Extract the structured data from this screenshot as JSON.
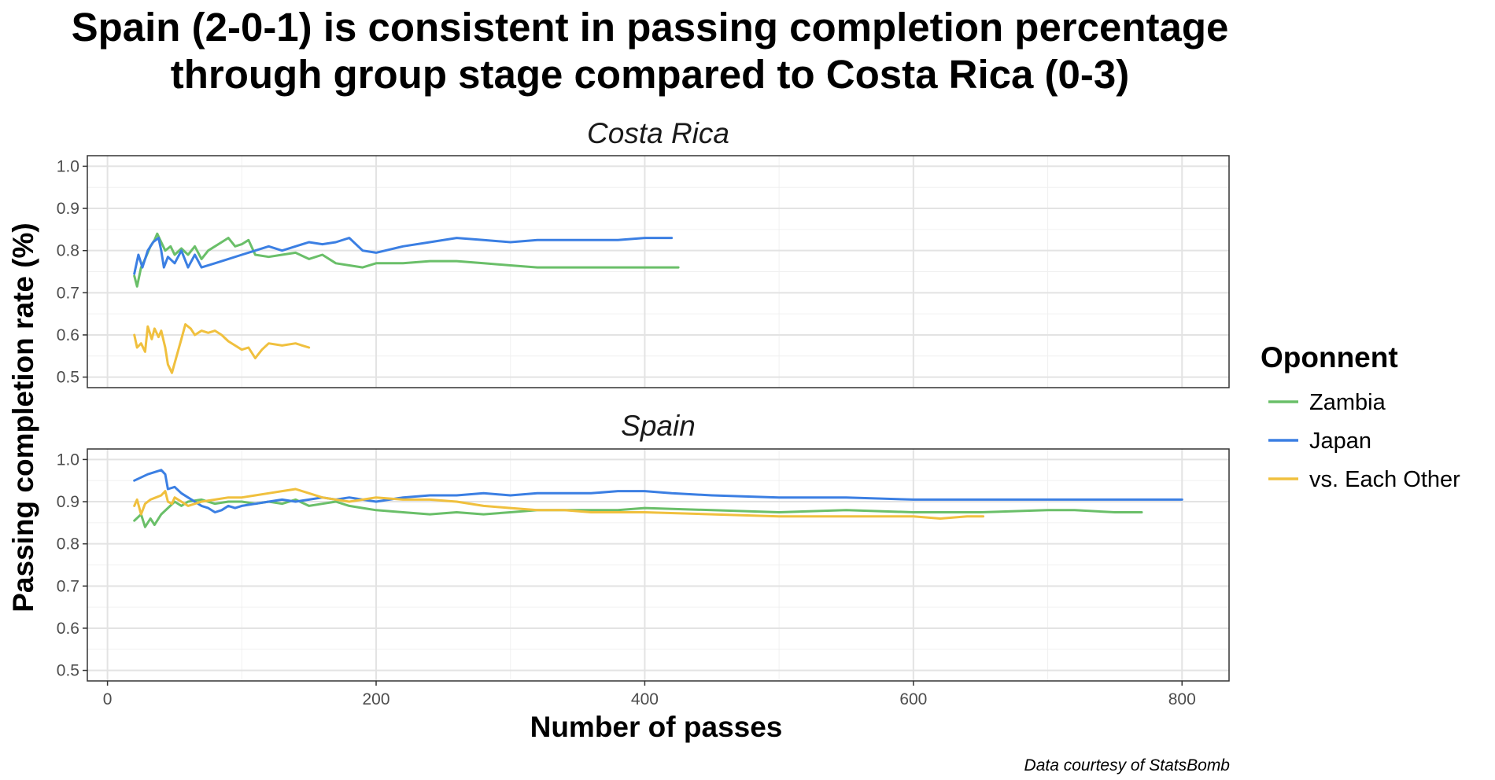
{
  "chart_data": {
    "type": "line",
    "title_lines": [
      "Spain (2-0-1) is consistent in passing completion percentage",
      "through group stage compared to Costa Rica (0-3)"
    ],
    "xlabel": "Number of passes",
    "ylabel": "Passing completion rate (%)",
    "caption": "Data courtesy of StatsBomb",
    "xlim": [
      -15,
      835
    ],
    "ylim": [
      0.475,
      1.025
    ],
    "x_ticks": [
      0,
      200,
      400,
      600,
      800
    ],
    "y_ticks": [
      0.5,
      0.6,
      0.7,
      0.8,
      0.9,
      1.0
    ],
    "y_tick_labels": [
      "0.5",
      "0.6",
      "0.7",
      "0.8",
      "0.9",
      "1.0"
    ],
    "grid": true,
    "legend": {
      "title": "Oponnent",
      "position": "right",
      "entries": [
        {
          "label": "Zambia",
          "color": "#6abf69"
        },
        {
          "label": "Japan",
          "color": "#3b7fe3"
        },
        {
          "label": "vs. Each Other",
          "color": "#f0c03e"
        }
      ]
    },
    "facets": [
      {
        "name": "Costa Rica",
        "series": [
          {
            "name": "Zambia",
            "color": "#6abf69",
            "x": [
              20,
              22,
              25,
              28,
              32,
              35,
              37,
              40,
              43,
              47,
              50,
              55,
              60,
              65,
              70,
              75,
              80,
              85,
              90,
              95,
              100,
              105,
              110,
              120,
              130,
              140,
              150,
              160,
              170,
              180,
              190,
              200,
              220,
              240,
              260,
              280,
              300,
              320,
              340,
              360,
              380,
              400,
              420,
              425
            ],
            "y": [
              0.74,
              0.715,
              0.76,
              0.78,
              0.81,
              0.825,
              0.84,
              0.82,
              0.8,
              0.81,
              0.79,
              0.805,
              0.79,
              0.81,
              0.78,
              0.8,
              0.81,
              0.82,
              0.83,
              0.81,
              0.815,
              0.825,
              0.79,
              0.785,
              0.79,
              0.795,
              0.78,
              0.79,
              0.77,
              0.765,
              0.76,
              0.77,
              0.77,
              0.775,
              0.775,
              0.77,
              0.765,
              0.76,
              0.76,
              0.76,
              0.76,
              0.76,
              0.76,
              0.76
            ]
          },
          {
            "name": "Japan",
            "color": "#3b7fe3",
            "x": [
              20,
              23,
              26,
              30,
              34,
              38,
              40,
              42,
              45,
              50,
              55,
              60,
              65,
              70,
              80,
              90,
              100,
              110,
              120,
              130,
              140,
              150,
              160,
              170,
              180,
              190,
              200,
              220,
              240,
              260,
              280,
              300,
              320,
              340,
              360,
              380,
              400,
              410,
              420
            ],
            "y": [
              0.745,
              0.79,
              0.76,
              0.8,
              0.82,
              0.83,
              0.8,
              0.76,
              0.785,
              0.77,
              0.8,
              0.76,
              0.79,
              0.76,
              0.77,
              0.78,
              0.79,
              0.8,
              0.81,
              0.8,
              0.81,
              0.82,
              0.815,
              0.82,
              0.83,
              0.8,
              0.795,
              0.81,
              0.82,
              0.83,
              0.825,
              0.82,
              0.825,
              0.825,
              0.825,
              0.825,
              0.83,
              0.83,
              0.83
            ]
          },
          {
            "name": "vs. Each Other",
            "color": "#f0c03e",
            "x": [
              20,
              22,
              25,
              28,
              30,
              33,
              35,
              38,
              40,
              43,
              45,
              48,
              55,
              58,
              62,
              65,
              70,
              75,
              80,
              85,
              90,
              95,
              100,
              105,
              110,
              115,
              120,
              130,
              140,
              145,
              150
            ],
            "y": [
              0.6,
              0.57,
              0.58,
              0.56,
              0.62,
              0.59,
              0.615,
              0.595,
              0.61,
              0.57,
              0.53,
              0.51,
              0.59,
              0.625,
              0.615,
              0.6,
              0.61,
              0.605,
              0.61,
              0.6,
              0.585,
              0.575,
              0.565,
              0.57,
              0.545,
              0.565,
              0.58,
              0.575,
              0.58,
              0.575,
              0.57
            ]
          }
        ]
      },
      {
        "name": "Spain",
        "series": [
          {
            "name": "Zambia",
            "color": "#6abf69",
            "x": [
              20,
              25,
              28,
              32,
              35,
              40,
              45,
              50,
              55,
              60,
              70,
              80,
              90,
              100,
              110,
              120,
              130,
              140,
              150,
              160,
              170,
              180,
              190,
              200,
              220,
              240,
              260,
              280,
              300,
              320,
              340,
              360,
              380,
              400,
              450,
              500,
              550,
              600,
              650,
              700,
              720,
              750,
              770
            ],
            "y": [
              0.855,
              0.87,
              0.84,
              0.86,
              0.845,
              0.87,
              0.885,
              0.9,
              0.89,
              0.9,
              0.905,
              0.895,
              0.9,
              0.9,
              0.895,
              0.9,
              0.895,
              0.905,
              0.89,
              0.895,
              0.9,
              0.89,
              0.885,
              0.88,
              0.875,
              0.87,
              0.875,
              0.87,
              0.875,
              0.88,
              0.88,
              0.88,
              0.88,
              0.885,
              0.88,
              0.875,
              0.88,
              0.875,
              0.875,
              0.88,
              0.88,
              0.875,
              0.875
            ]
          },
          {
            "name": "Japan",
            "color": "#3b7fe3",
            "x": [
              20,
              30,
              40,
              43,
              45,
              50,
              55,
              60,
              65,
              70,
              75,
              80,
              85,
              90,
              95,
              100,
              110,
              120,
              130,
              140,
              150,
              160,
              170,
              180,
              190,
              200,
              220,
              240,
              260,
              280,
              300,
              320,
              340,
              360,
              380,
              400,
              420,
              450,
              500,
              550,
              600,
              650,
              700,
              750,
              800
            ],
            "y": [
              0.95,
              0.965,
              0.975,
              0.965,
              0.93,
              0.935,
              0.92,
              0.91,
              0.9,
              0.89,
              0.885,
              0.875,
              0.88,
              0.89,
              0.885,
              0.89,
              0.895,
              0.9,
              0.905,
              0.9,
              0.905,
              0.91,
              0.905,
              0.91,
              0.905,
              0.9,
              0.91,
              0.915,
              0.915,
              0.92,
              0.915,
              0.92,
              0.92,
              0.92,
              0.925,
              0.925,
              0.92,
              0.915,
              0.91,
              0.91,
              0.905,
              0.905,
              0.905,
              0.905,
              0.905
            ]
          },
          {
            "name": "vs. Each Other",
            "color": "#f0c03e",
            "x": [
              20,
              22,
              25,
              28,
              32,
              36,
              40,
              43,
              45,
              48,
              50,
              55,
              60,
              65,
              70,
              80,
              90,
              100,
              110,
              120,
              130,
              140,
              150,
              160,
              170,
              180,
              190,
              200,
              220,
              240,
              260,
              280,
              300,
              320,
              340,
              360,
              380,
              400,
              450,
              500,
              550,
              600,
              620,
              640,
              652
            ],
            "y": [
              0.89,
              0.905,
              0.87,
              0.895,
              0.905,
              0.91,
              0.915,
              0.925,
              0.9,
              0.895,
              0.91,
              0.9,
              0.89,
              0.895,
              0.9,
              0.905,
              0.91,
              0.91,
              0.915,
              0.92,
              0.925,
              0.93,
              0.92,
              0.91,
              0.905,
              0.9,
              0.905,
              0.91,
              0.905,
              0.905,
              0.9,
              0.89,
              0.885,
              0.88,
              0.88,
              0.875,
              0.875,
              0.875,
              0.87,
              0.865,
              0.865,
              0.865,
              0.86,
              0.865,
              0.865
            ]
          }
        ]
      }
    ]
  }
}
